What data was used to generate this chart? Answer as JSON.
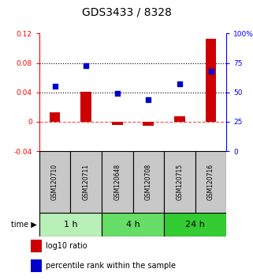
{
  "title": "GDS3433 / 8328",
  "samples": [
    "GSM120710",
    "GSM120711",
    "GSM120648",
    "GSM120708",
    "GSM120715",
    "GSM120716"
  ],
  "log10_ratio": [
    0.013,
    0.041,
    -0.004,
    -0.005,
    0.008,
    0.113
  ],
  "percentile_rank": [
    55,
    73,
    49,
    44,
    57,
    68
  ],
  "left_ylim": [
    -0.04,
    0.12
  ],
  "right_ylim": [
    0,
    100
  ],
  "left_yticks": [
    -0.04,
    0.0,
    0.04,
    0.08,
    0.12
  ],
  "right_yticks": [
    0,
    25,
    50,
    75,
    100
  ],
  "left_yticklabels": [
    "-0.04",
    "0",
    "0.04",
    "0.08",
    "0.12"
  ],
  "right_yticklabels": [
    "0",
    "25",
    "50",
    "75",
    "100%"
  ],
  "hlines": [
    0.04,
    0.08
  ],
  "zero_line": 0.0,
  "bar_color": "#cc0000",
  "scatter_color": "#0000cc",
  "bar_width": 0.35,
  "time_groups": [
    {
      "label": "1 h",
      "start": 0,
      "end": 1,
      "color": "#b8f0b8"
    },
    {
      "label": "4 h",
      "start": 2,
      "end": 3,
      "color": "#66dd66"
    },
    {
      "label": "24 h",
      "start": 4,
      "end": 5,
      "color": "#33cc33"
    }
  ],
  "sample_box_color": "#c8c8c8",
  "legend_items": [
    {
      "label": "log10 ratio",
      "color": "#cc0000"
    },
    {
      "label": "percentile rank within the sample",
      "color": "#0000cc"
    }
  ],
  "background_color": "#ffffff",
  "title_fontsize": 10,
  "tick_fontsize": 6.5,
  "sample_fontsize": 5.5,
  "time_fontsize": 8,
  "legend_fontsize": 7
}
